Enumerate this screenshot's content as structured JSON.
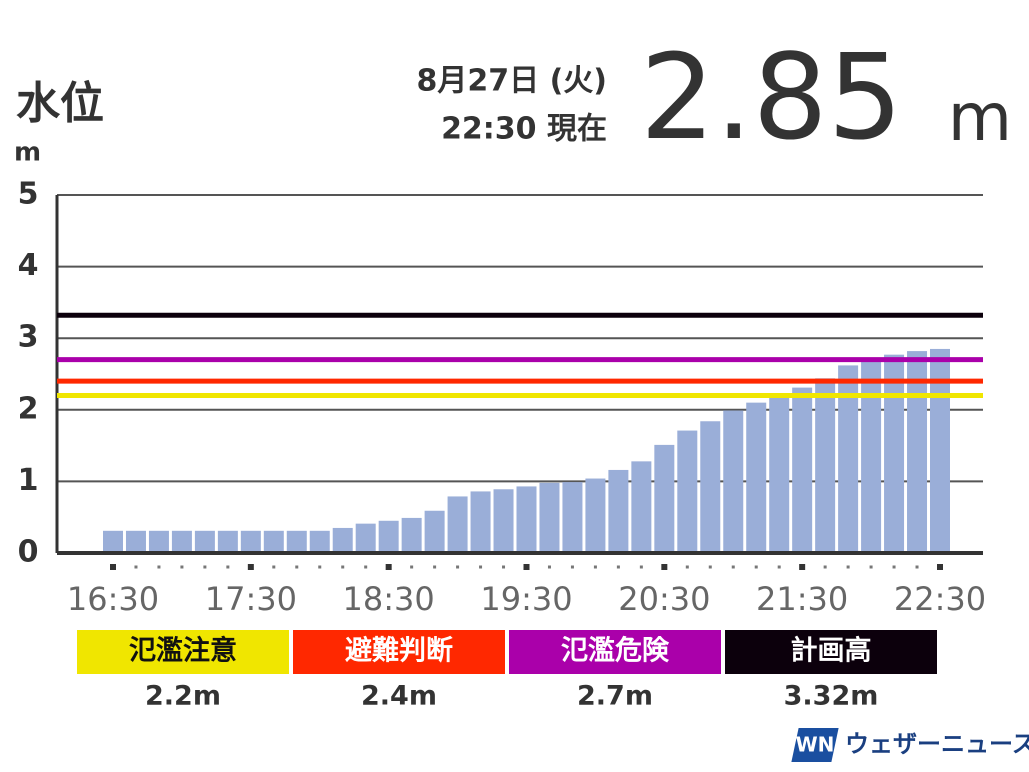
{
  "header": {
    "title": "水位",
    "unit": "m",
    "date": "8月27日 (火)",
    "time": "22:30 現在",
    "current_value": "2.85",
    "current_unit": "m"
  },
  "chart_data": {
    "type": "bar",
    "categories": [
      "16:30",
      null,
      null,
      null,
      null,
      null,
      "17:30",
      null,
      null,
      null,
      null,
      null,
      "18:30",
      null,
      null,
      null,
      null,
      null,
      "19:30",
      null,
      null,
      null,
      null,
      null,
      "20:30",
      null,
      null,
      null,
      null,
      null,
      "21:30",
      null,
      null,
      null,
      null,
      null,
      "22:30"
    ],
    "values": [
      0.31,
      0.31,
      0.31,
      0.31,
      0.31,
      0.31,
      0.31,
      0.31,
      0.31,
      0.31,
      0.35,
      0.41,
      0.45,
      0.49,
      0.59,
      0.79,
      0.86,
      0.89,
      0.93,
      0.98,
      0.99,
      1.04,
      1.16,
      1.28,
      1.51,
      1.71,
      1.84,
      1.99,
      2.1,
      2.22,
      2.31,
      2.44,
      2.62,
      2.67,
      2.77,
      2.82,
      2.85
    ],
    "color": "#9aaed8",
    "ylim": [
      0,
      5
    ],
    "yticks": [
      0,
      1,
      2,
      3,
      4,
      5
    ],
    "grid": true,
    "thresholds": [
      {
        "name": "氾濫注意",
        "value": 2.2,
        "value_label": "2.2m",
        "color": "#f0e600"
      },
      {
        "name": "避難判断",
        "value": 2.4,
        "value_label": "2.4m",
        "color": "#ff2800"
      },
      {
        "name": "氾濫危険",
        "value": 2.7,
        "value_label": "2.7m",
        "color": "#aa00aa"
      },
      {
        "name": "計画高",
        "value": 3.32,
        "value_label": "3.32m",
        "color": "#0c000c"
      }
    ]
  },
  "footer": {
    "brand": "ウェザーニュース"
  }
}
